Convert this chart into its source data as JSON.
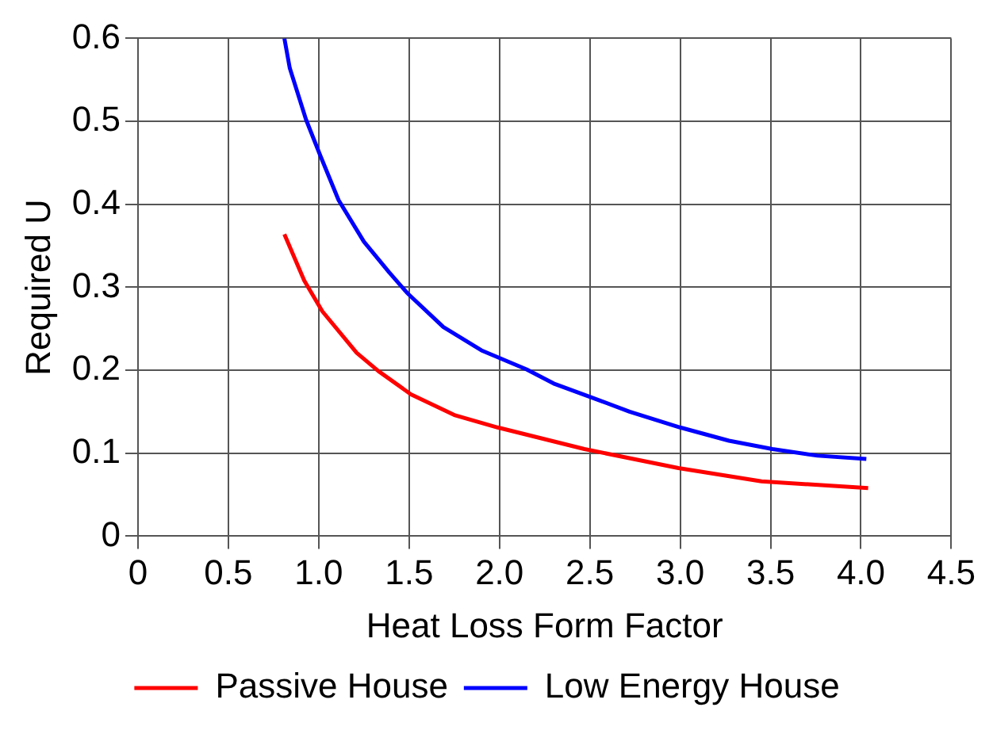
{
  "chart_data": {
    "type": "line",
    "xlabel": "Heat Loss Form Factor",
    "ylabel": "Required U",
    "xlim": [
      0,
      4.5
    ],
    "xticks": [
      {
        "value": 0,
        "label": "0"
      },
      {
        "value": 0.5,
        "label": "0.5"
      },
      {
        "value": 1,
        "label": "1.0"
      },
      {
        "value": 1.5,
        "label": "1.5"
      },
      {
        "value": 2,
        "label": "2.0"
      },
      {
        "value": 2.5,
        "label": "2.5"
      },
      {
        "value": 3,
        "label": "3.0"
      },
      {
        "value": 3.5,
        "label": "3.5"
      },
      {
        "value": 4,
        "label": "4.0"
      },
      {
        "value": 4.5,
        "label": "4.5"
      }
    ],
    "ylim": [
      0,
      0.6
    ],
    "yticks": [
      0,
      0.1,
      0.2,
      0.3,
      0.4,
      0.5,
      0.6
    ],
    "grid": true,
    "legend": "bottom",
    "marker": "none",
    "line_style": "solid",
    "series": [
      {
        "name": "Passive House",
        "color": "#ff0000",
        "x": [
          0.81,
          0.92,
          1.02,
          1.21,
          1.33,
          1.51,
          1.75,
          1.99,
          2.47,
          2.99,
          3.45,
          4.04
        ],
        "values": [
          0.364,
          0.308,
          0.271,
          0.221,
          0.199,
          0.171,
          0.146,
          0.131,
          0.105,
          0.082,
          0.066,
          0.058
        ]
      },
      {
        "name": "Low Energy House",
        "color": "#0000ff",
        "x": [
          0.81,
          0.84,
          0.93,
          1.01,
          1.11,
          1.25,
          1.39,
          1.49,
          1.69,
          1.9,
          2.15,
          2.3,
          2.5,
          2.72,
          3.0,
          3.27,
          3.51,
          3.76,
          4.03
        ],
        "values": [
          0.6,
          0.564,
          0.502,
          0.458,
          0.405,
          0.355,
          0.318,
          0.293,
          0.252,
          0.224,
          0.201,
          0.184,
          0.168,
          0.15,
          0.131,
          0.115,
          0.105,
          0.097,
          0.093
        ]
      }
    ]
  }
}
